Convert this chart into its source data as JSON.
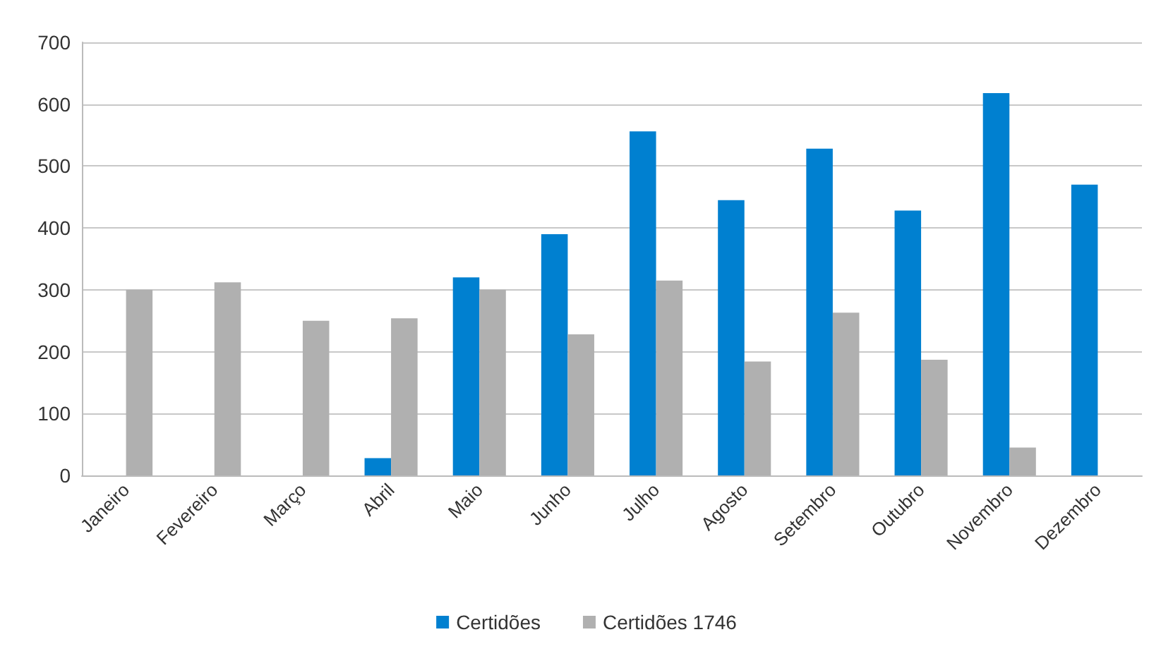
{
  "chart_data": {
    "type": "bar",
    "categories": [
      "Janeiro",
      "Fevereiro",
      "Março",
      "Abril",
      "Maio",
      "Junho",
      "Julho",
      "Agosto",
      "Setembro",
      "Outubro",
      "Novembro",
      "Dezembro"
    ],
    "series": [
      {
        "name": "Certidões",
        "color": "#0080d0",
        "values": [
          null,
          null,
          null,
          28,
          320,
          390,
          556,
          445,
          528,
          428,
          618,
          470
        ]
      },
      {
        "name": "Certidões 1746",
        "color": "#b0b0b0",
        "values": [
          300,
          312,
          250,
          254,
          300,
          228,
          315,
          184,
          263,
          187,
          45,
          null
        ]
      }
    ],
    "ylim": [
      0,
      700
    ],
    "yticks": [
      0,
      100,
      200,
      300,
      400,
      500,
      600,
      700
    ],
    "grid": "y",
    "legend": "bottom"
  }
}
